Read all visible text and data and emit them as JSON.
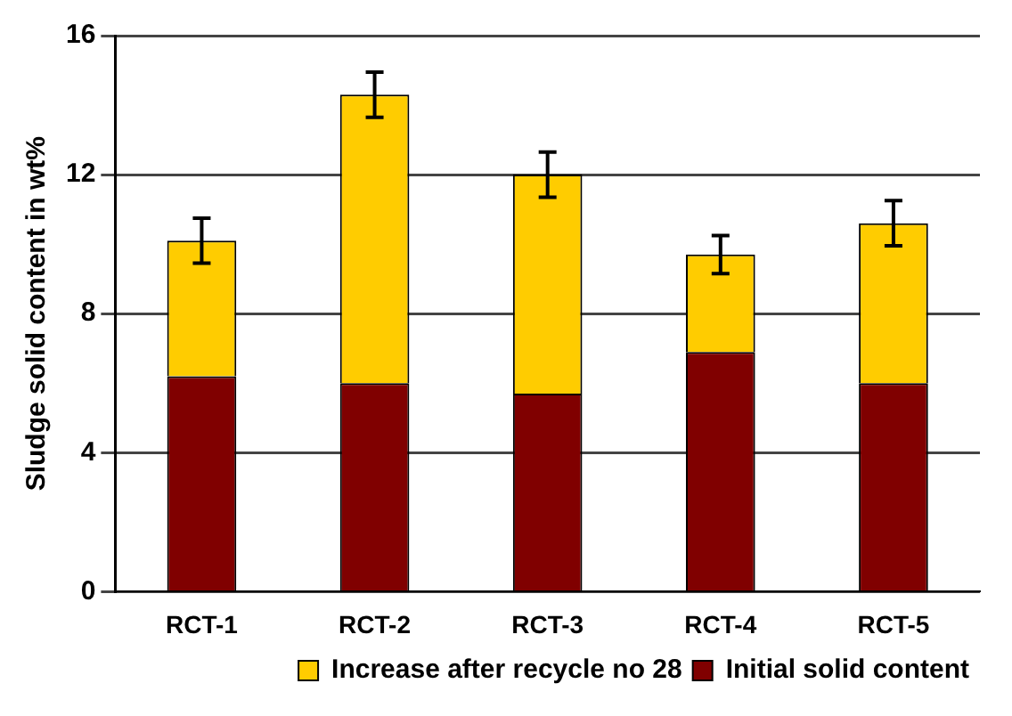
{
  "chart_data": {
    "type": "bar",
    "stacked": true,
    "ylabel": "Sludge solid content in wt%",
    "categories": [
      "RCT-1",
      "RCT-2",
      "RCT-3",
      "RCT-4",
      "RCT-5"
    ],
    "series": [
      {
        "name": "Initial solid content",
        "color": "#800000",
        "values": [
          6.2,
          6.0,
          5.7,
          6.9,
          6.0
        ]
      },
      {
        "name": "Increase after recycle no 28",
        "color": "#ffcc00",
        "values": [
          3.9,
          8.3,
          6.3,
          2.8,
          4.6
        ],
        "errors": [
          0.65,
          0.65,
          0.65,
          0.55,
          0.65
        ]
      }
    ],
    "ylim": [
      0,
      16
    ],
    "yticks": [
      0,
      4,
      8,
      12,
      16
    ],
    "grid": "y",
    "legend": "bottom right"
  }
}
